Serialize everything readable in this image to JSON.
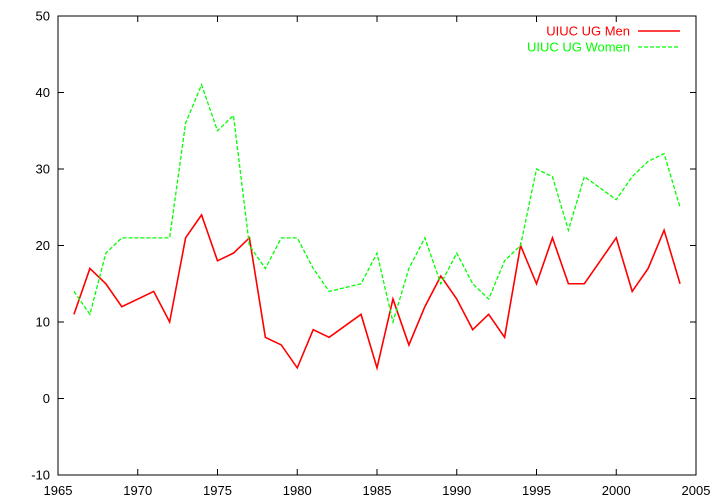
{
  "chart_data": {
    "type": "line",
    "title": "",
    "xlabel": "",
    "ylabel": "",
    "xlim": [
      1965,
      2005
    ],
    "ylim": [
      -10,
      50
    ],
    "xticks": [
      1965,
      1970,
      1975,
      1980,
      1985,
      1990,
      1995,
      2000,
      2005
    ],
    "yticks": [
      -10,
      0,
      10,
      20,
      30,
      40,
      50
    ],
    "grid": false,
    "legend_position": "top-right",
    "series": [
      {
        "name": "UIUC UG Men",
        "color": "#ff0000",
        "dash": "solid",
        "x": [
          1966,
          1967,
          1968,
          1969,
          1971,
          1972,
          1973,
          1974,
          1975,
          1976,
          1977,
          1978,
          1979,
          1980,
          1981,
          1982,
          1984,
          1985,
          1986,
          1987,
          1988,
          1989,
          1990,
          1991,
          1992,
          1993,
          1994,
          1995,
          1996,
          1997,
          1998,
          2000,
          2001,
          2002,
          2003,
          2004
        ],
        "y": [
          11,
          17,
          15,
          12,
          14,
          10,
          21,
          24,
          18,
          19,
          21,
          8,
          7,
          4,
          9,
          8,
          11,
          4,
          13,
          7,
          12,
          16,
          13,
          9,
          11,
          8,
          20,
          15,
          21,
          15,
          15,
          21,
          14,
          17,
          22,
          15
        ]
      },
      {
        "name": "UIUC UG Women",
        "color": "#00ff00",
        "dash": "dashed",
        "x": [
          1966,
          1967,
          1968,
          1969,
          1970,
          1971,
          1972,
          1973,
          1974,
          1975,
          1976,
          1977,
          1978,
          1979,
          1980,
          1981,
          1982,
          1983,
          1984,
          1985,
          1986,
          1987,
          1988,
          1989,
          1990,
          1991,
          1992,
          1993,
          1994,
          1995,
          1996,
          1997,
          1998,
          1999,
          2000,
          2001,
          2002,
          2003,
          2004
        ],
        "y": [
          14,
          11,
          19,
          21,
          21,
          21,
          21,
          36,
          41,
          35,
          37,
          20,
          17,
          21,
          21,
          17,
          14,
          14.5,
          15,
          19,
          10,
          17,
          21,
          15,
          19,
          15,
          13,
          18,
          20,
          30,
          29,
          22,
          29,
          27.5,
          26,
          29,
          31,
          32,
          25
        ]
      }
    ]
  }
}
